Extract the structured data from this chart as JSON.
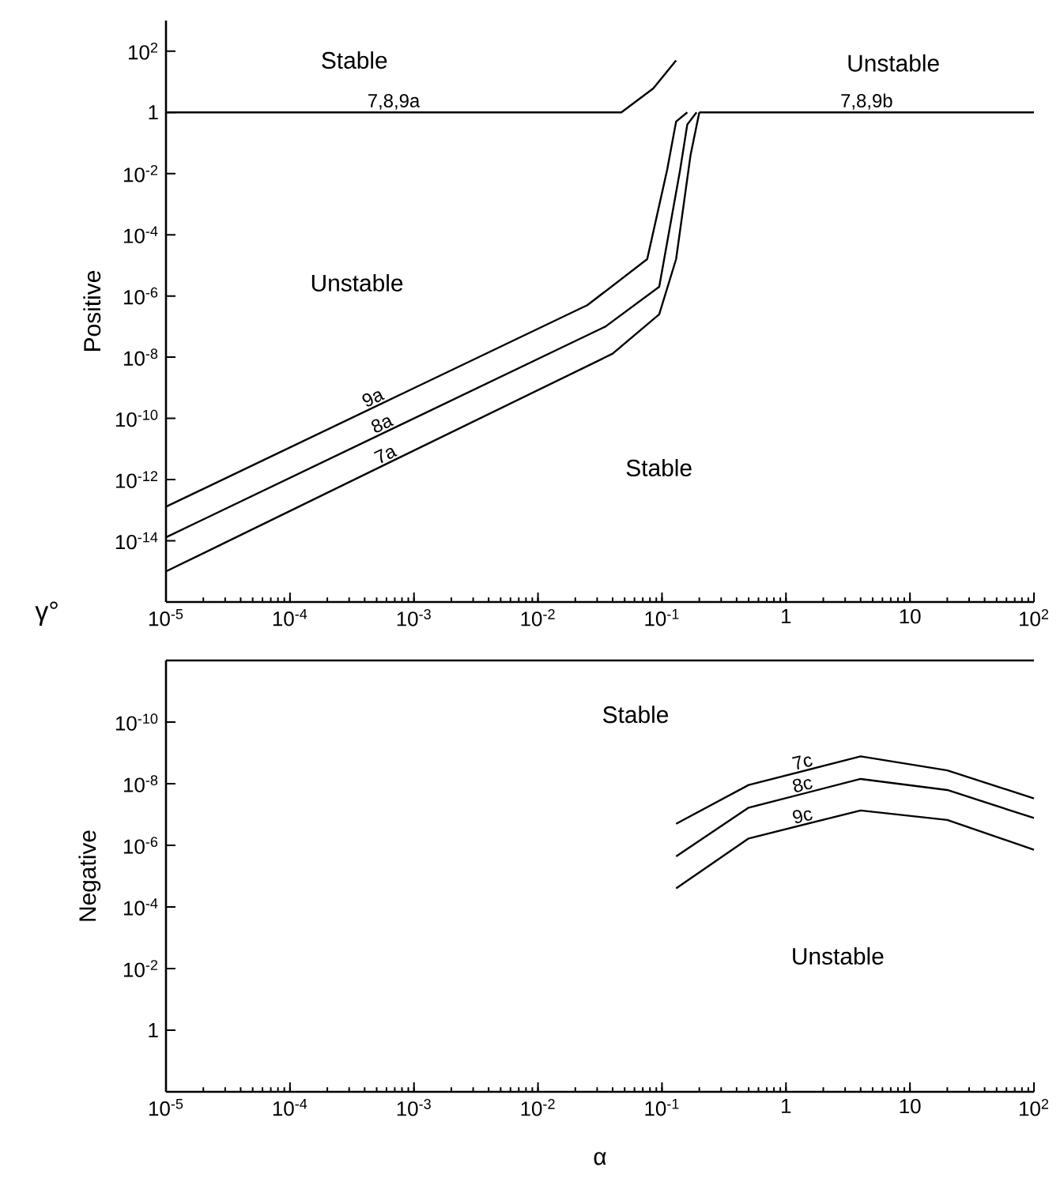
{
  "chart_data": [
    {
      "type": "line",
      "ylabel": "Positive",
      "log": "xy",
      "xlim": [
        1e-05,
        100
      ],
      "ylim": [
        1e-16,
        1000
      ],
      "xticks": [
        {
          "value": 1e-05,
          "label": "10$^{-5}$"
        },
        {
          "value": 0.0001,
          "label": "10$^{-4}$"
        },
        {
          "value": 0.001,
          "label": "10$^{-3}$"
        },
        {
          "value": 0.01,
          "label": "10$^{-2}$"
        },
        {
          "value": 0.1,
          "label": "10$^{-1}$"
        },
        1,
        10,
        {
          "value": 100,
          "label": "10$^{2}$"
        }
      ],
      "yticks": [
        {
          "value": 100,
          "label": "10$^{2}$"
        },
        1,
        {
          "value": 0.01,
          "label": "10$^{-2}$"
        },
        {
          "value": 0.0001,
          "label": "10$^{-4}$"
        },
        {
          "value": 1e-06,
          "label": "10$^{-6}$"
        },
        {
          "value": 1e-08,
          "label": "10$^{-8}$"
        },
        {
          "value": 1e-10,
          "label": "10$^{-10}$"
        },
        {
          "value": 1e-12,
          "label": "10$^{-12}$"
        },
        {
          "value": 1e-14,
          "label": "10$^{-14}$"
        }
      ],
      "series": [
        {
          "name": "7,8,9a",
          "color": "#000000",
          "x": [
            1e-05,
            0.047,
            0.085,
            0.13
          ],
          "values": [
            1,
            1,
            6,
            50
          ]
        },
        {
          "name": "9a",
          "color": "#000000",
          "x": [
            1e-05,
            0.025,
            0.076,
            0.11,
            0.13,
            0.16
          ],
          "values": [
            1.3e-13,
            5e-07,
            1.6e-05,
            0.013,
            0.5,
            1
          ]
        },
        {
          "name": "8a",
          "color": "#000000",
          "x": [
            1e-05,
            0.035,
            0.095,
            0.14,
            0.16,
            0.19
          ],
          "values": [
            1.3e-14,
            1e-07,
            2e-06,
            0.013,
            0.4,
            1
          ]
        },
        {
          "name": "7a",
          "color": "#000000",
          "x": [
            1e-05,
            0.04,
            0.095,
            0.13,
            0.17,
            0.2
          ],
          "values": [
            1e-15,
            1.3e-08,
            2.5e-07,
            1.6e-05,
            0.04,
            1
          ]
        },
        {
          "name": "7,8,9b",
          "color": "#000000",
          "x": [
            0.2,
            100
          ],
          "values": [
            1,
            1
          ]
        }
      ],
      "annotations": [
        "γ°",
        "Stable",
        "Unstable",
        "Unstable",
        "Stable"
      ]
    },
    {
      "type": "line",
      "ylabel": "Negative",
      "xlabel": "α",
      "log": "xy",
      "xlim": [
        1e-05,
        100
      ],
      "ylim": [
        100,
        1e-12
      ],
      "xticks": [
        {
          "value": 1e-05,
          "label": "10$^{-5}$"
        },
        {
          "value": 0.0001,
          "label": "10$^{-4}$"
        },
        {
          "value": 0.001,
          "label": "10$^{-3}$"
        },
        {
          "value": 0.01,
          "label": "10$^{-2}$"
        },
        {
          "value": 0.1,
          "label": "10$^{-1}$"
        },
        1,
        10,
        {
          "value": 100,
          "label": "10$^{2}$"
        }
      ],
      "yticks": [
        {
          "value": 1e-10,
          "label": "10$^{-10}$"
        },
        {
          "value": 1e-08,
          "label": "10$^{-8}$"
        },
        {
          "value": 1e-06,
          "label": "10$^{-6}$"
        },
        {
          "value": 0.0001,
          "label": "10$^{-4}$"
        },
        {
          "value": 0.01,
          "label": "10$^{-2}$"
        },
        1
      ],
      "series": [
        {
          "name": "7c",
          "color": "#000000",
          "x": [
            0.13,
            0.5,
            4,
            20,
            100
          ],
          "values": [
            2e-07,
            1.1e-08,
            1.3e-09,
            3.7e-09,
            3e-08
          ]
        },
        {
          "name": "8c",
          "color": "#000000",
          "x": [
            0.13,
            0.5,
            4,
            20,
            100
          ],
          "values": [
            2.3e-06,
            6e-08,
            7e-09,
            1.6e-08,
            1.3e-07
          ]
        },
        {
          "name": "9c",
          "color": "#000000",
          "x": [
            0.13,
            0.5,
            4,
            20,
            100
          ],
          "values": [
            2.5e-05,
            6e-07,
            7.4e-08,
            1.5e-07,
            1.4e-06
          ]
        }
      ],
      "annotations": [
        "Stable",
        "Unstable"
      ]
    }
  ]
}
